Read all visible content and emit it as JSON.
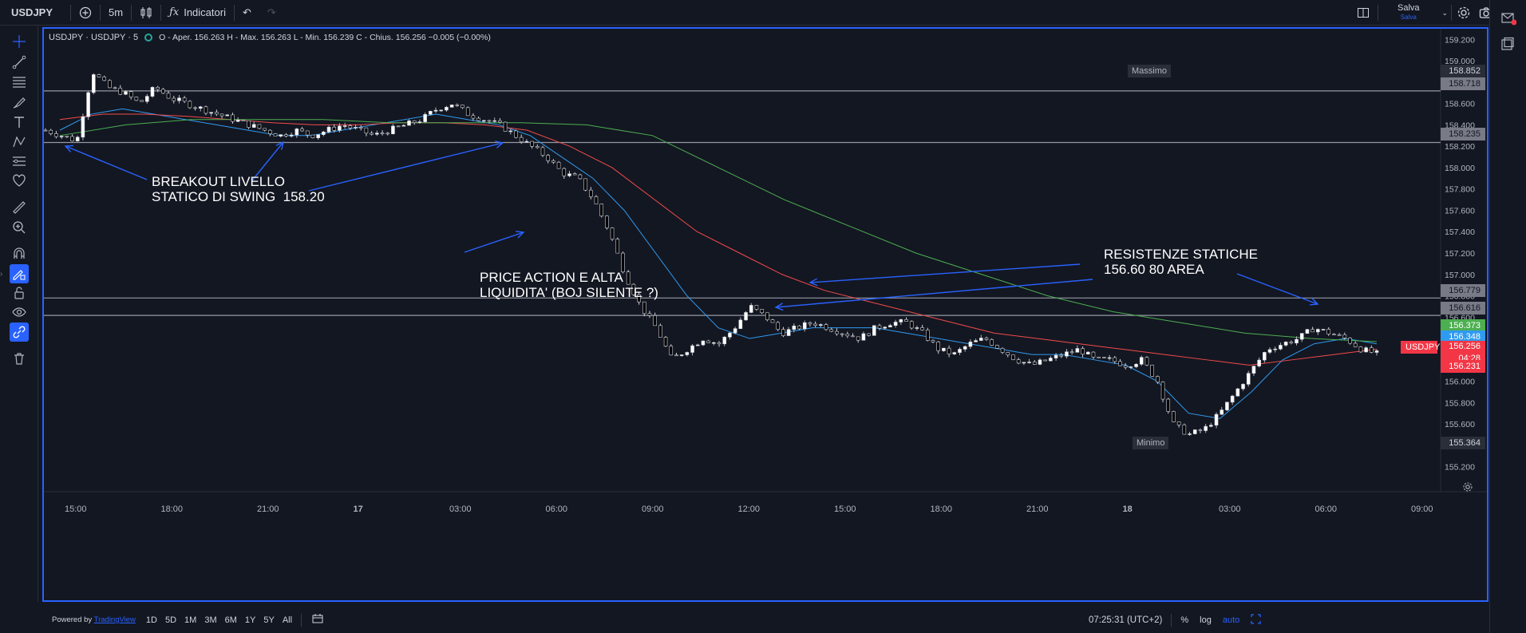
{
  "topbar": {
    "symbol": "USDJPY",
    "interval": "5m",
    "indicators_label": "Indicatori",
    "save_label": "Salva",
    "saved_sub": "Salva"
  },
  "legend": {
    "title": "USDJPY · USDJPY · 5",
    "ohlc": "O - Aper. 156.263  H - Max. 156.263  L - Min. 156.239  C - Chius. 156.256  −0.005 (−0.00%)"
  },
  "price_axis": {
    "ticks": [
      "159.200",
      "159.000",
      "158.800",
      "158.600",
      "158.400",
      "158.200",
      "158.000",
      "157.800",
      "157.600",
      "157.400",
      "157.200",
      "157.000",
      "156.800",
      "156.600",
      "156.400",
      "156.200",
      "156.000",
      "155.800",
      "155.600",
      "155.400",
      "155.200"
    ]
  },
  "price_tags": {
    "high_label": "Massimo",
    "high": "158.852",
    "line1": "158.718",
    "line2": "158.235",
    "line3": "156.779",
    "line4": "156.616",
    "ma_green": "156.373",
    "ma_blue": "156.348",
    "symbol_tag": "USDJPY",
    "last": "156.256",
    "countdown": "04:28",
    "ma_red": "156.231",
    "low_label": "Minimo",
    "low": "155.364"
  },
  "time_axis": {
    "labels": [
      "15:00",
      "18:00",
      "21:00",
      "17",
      "03:00",
      "06:00",
      "09:00",
      "12:00",
      "15:00",
      "18:00",
      "21:00",
      "18",
      "03:00",
      "06:00",
      "09:00"
    ]
  },
  "annotations": {
    "breakout": "BREAKOUT LIVELLO\nSTATICO DI SWING  158.20",
    "price_action": "PRICE ACTION E ALTA\nLIQUIDITA' (BOJ SILENTE ?)",
    "resistenze": "RESISTENZE STATICHE\n156.60 80 AREA"
  },
  "bottombar": {
    "powered_by": "Powered by",
    "tradingview": "TradingView",
    "ranges": [
      "1D",
      "5D",
      "1M",
      "3M",
      "6M",
      "1Y",
      "5Y",
      "All"
    ],
    "clock": "07:25:31 (UTC+2)",
    "percent": "%",
    "log": "log",
    "auto": "auto"
  },
  "colors": {
    "up": "#ffffff",
    "down": "#000000",
    "ma_blue": "#2f9bf0",
    "ma_red": "#f24b4b",
    "ma_green": "#4caf50",
    "hline": "#9598a1",
    "accent": "#2962ff"
  },
  "chart_data": {
    "type": "candlestick",
    "y_range": [
      155.1,
      159.3
    ],
    "hlines": [
      158.718,
      158.235,
      156.779,
      156.616
    ],
    "series": [
      {
        "name": "price",
        "close": [
          158.35,
          158.3,
          158.25,
          158.9,
          158.75,
          158.7,
          158.6,
          158.75,
          158.65,
          158.6,
          158.55,
          158.5,
          158.45,
          158.4,
          158.35,
          158.3,
          158.35,
          158.3,
          158.35,
          158.4,
          158.35,
          158.3,
          158.35,
          158.4,
          158.45,
          158.55,
          158.6,
          158.5,
          158.45,
          158.4,
          158.3,
          158.2,
          158.1,
          157.95,
          157.9,
          157.7,
          157.4,
          157.0,
          156.7,
          156.5,
          156.2,
          156.3,
          156.4,
          156.35,
          156.5,
          156.7,
          156.6,
          156.45,
          156.5,
          156.55,
          156.5,
          156.45,
          156.4,
          156.5,
          156.55,
          156.55,
          156.45,
          156.3,
          156.25,
          156.35,
          156.4,
          156.3,
          156.2,
          156.15,
          156.2,
          156.25,
          156.3,
          156.2,
          156.2,
          156.15,
          156.2,
          156.0,
          155.6,
          155.5,
          155.55,
          155.7,
          155.9,
          156.1,
          156.3,
          156.35,
          156.4,
          156.5,
          156.45,
          156.4,
          156.3,
          156.256
        ]
      }
    ],
    "ma": [
      {
        "name": "blue",
        "values": [
          158.35,
          158.5,
          158.55,
          158.5,
          158.45,
          158.4,
          158.35,
          158.3,
          158.3,
          158.35,
          158.4,
          158.45,
          158.5,
          158.45,
          158.4,
          158.3,
          158.1,
          157.9,
          157.6,
          157.2,
          156.8,
          156.5,
          156.4,
          156.45,
          156.5,
          156.5,
          156.5,
          156.45,
          156.4,
          156.35,
          156.3,
          156.25,
          156.25,
          156.2,
          156.15,
          156.0,
          155.7,
          155.65,
          155.9,
          156.2,
          156.35,
          156.4,
          156.35
        ]
      },
      {
        "name": "red",
        "values": [
          158.45,
          158.5,
          158.5,
          158.48,
          158.45,
          158.42,
          158.4,
          158.4,
          158.42,
          158.42,
          158.4,
          158.35,
          158.2,
          158.0,
          157.7,
          157.4,
          157.2,
          157.0,
          156.85,
          156.75,
          156.65,
          156.55,
          156.45,
          156.4,
          156.35,
          156.3,
          156.25,
          156.2,
          156.15,
          156.2,
          156.25,
          156.3
        ]
      },
      {
        "name": "green",
        "values": [
          158.3,
          158.4,
          158.45,
          158.45,
          158.45,
          158.42,
          158.42,
          158.42,
          158.4,
          158.3,
          158.0,
          157.7,
          157.45,
          157.2,
          157.0,
          156.8,
          156.65,
          156.55,
          156.45,
          156.4,
          156.37
        ]
      }
    ]
  }
}
